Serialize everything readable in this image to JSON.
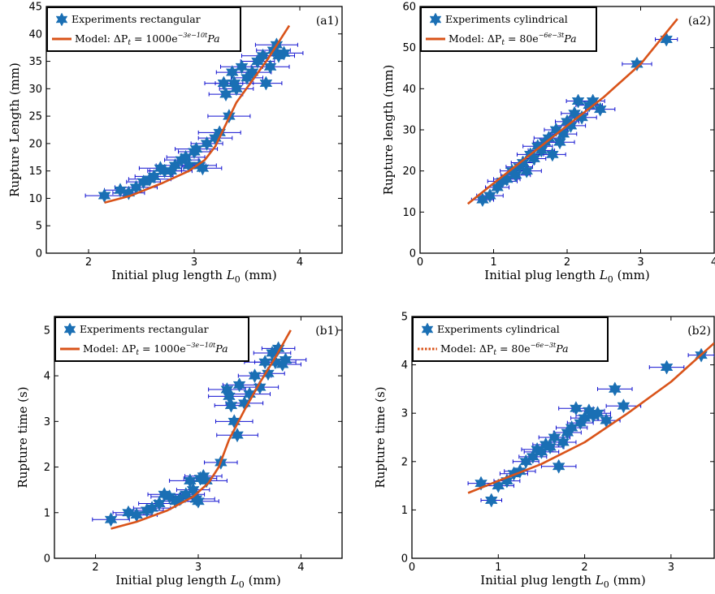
{
  "colors": {
    "marker": "#1a6fb4",
    "errorbar": "#1010d0",
    "model": "#d95319",
    "axis": "#000000"
  },
  "chart_data": [
    {
      "type": "scatter",
      "panel": "(a1)",
      "xlabel": "Initial plug length L0 (mm)",
      "xlabel_parts": {
        "main": "Initial plug length ",
        "var": "L",
        "sub": "0",
        "unit": " (mm)"
      },
      "ylabel": "Rupture Length (mm)",
      "xlim": [
        1.6,
        4.4
      ],
      "ylim": [
        0,
        45
      ],
      "xticks": [
        2,
        3,
        4
      ],
      "yticks": [
        0,
        5,
        10,
        15,
        20,
        25,
        30,
        35,
        40,
        45
      ],
      "legend": {
        "experiments": "Experiments rectangular",
        "model_prefix": "Model: ΔP",
        "model_sub": "t",
        "model_eq": " = 1000e",
        "model_exp": "−3e−10t",
        "model_suffix": "Pa",
        "model_style": "solid"
      },
      "series": [
        {
          "name": "Experiments rectangular",
          "kind": "points",
          "x": [
            2.15,
            2.3,
            2.38,
            2.45,
            2.52,
            2.58,
            2.62,
            2.68,
            2.72,
            2.78,
            2.82,
            2.88,
            2.92,
            2.95,
            3.0,
            3.02,
            3.05,
            3.08,
            3.12,
            3.2,
            3.24,
            3.28,
            3.3,
            3.33,
            3.36,
            3.38,
            3.4,
            3.45,
            3.5,
            3.55,
            3.6,
            3.65,
            3.68,
            3.72,
            3.75,
            3.78,
            3.8,
            3.85
          ],
          "y": [
            10.5,
            11.5,
            11,
            12,
            13,
            13.5,
            14,
            15.5,
            15,
            15,
            16,
            17,
            17.5,
            16,
            18.5,
            19,
            16,
            15.5,
            20,
            21,
            22,
            31,
            29,
            25,
            33,
            31,
            30,
            34,
            32,
            33,
            35,
            36,
            31,
            34,
            37,
            38,
            36,
            36.5
          ],
          "xerr": [
            0.18,
            0.15,
            0.15,
            0.2,
            0.16,
            0.2,
            0.18,
            0.2,
            0.16,
            0.2,
            0.18,
            0.16,
            0.18,
            0.16,
            0.15,
            0.2,
            0.16,
            0.18,
            0.15,
            0.16,
            0.2,
            0.18,
            0.16,
            0.2,
            0.15,
            0.18,
            0.16,
            0.2,
            0.15,
            0.18,
            0.16,
            0.2,
            0.15,
            0.18,
            0.16,
            0.2,
            0.15,
            0.18
          ]
        },
        {
          "name": "Model",
          "kind": "line",
          "x": [
            2.15,
            2.4,
            2.7,
            2.95,
            3.1,
            3.2,
            3.3,
            3.4,
            3.55,
            3.7,
            3.9
          ],
          "y": [
            9.2,
            10.5,
            12.8,
            15.0,
            17.0,
            19.5,
            23.5,
            27.5,
            31.5,
            35.5,
            41.5
          ]
        }
      ]
    },
    {
      "type": "scatter",
      "panel": "(a2)",
      "xlabel": "Initial plug length L0 (mm)",
      "xlabel_parts": {
        "main": "Initial plug length ",
        "var": "L",
        "sub": "0",
        "unit": " (mm)"
      },
      "ylabel": "Rupture length (mm)",
      "xlim": [
        0,
        4
      ],
      "ylim": [
        0,
        60
      ],
      "xticks": [
        0,
        1,
        2,
        3,
        4
      ],
      "yticks": [
        0,
        10,
        20,
        30,
        40,
        50,
        60
      ],
      "legend": {
        "experiments": "Experiments cylindrical",
        "model_prefix": "Model: ΔP",
        "model_sub": "t",
        "model_eq": " = 80e",
        "model_exp": "−6e−3t",
        "model_suffix": "Pa",
        "model_style": "solid"
      },
      "series": [
        {
          "name": "Experiments cylindrical",
          "kind": "points",
          "x": [
            0.85,
            0.95,
            1.05,
            1.12,
            1.18,
            1.25,
            1.3,
            1.35,
            1.4,
            1.45,
            1.5,
            1.55,
            1.6,
            1.65,
            1.7,
            1.75,
            1.8,
            1.85,
            1.9,
            1.95,
            2.0,
            2.05,
            2.1,
            2.15,
            2.2,
            2.3,
            2.35,
            2.45,
            2.95,
            3.35
          ],
          "y": [
            13,
            14,
            16,
            17.5,
            18,
            20,
            19,
            21,
            22,
            20,
            24,
            23,
            26,
            25,
            27,
            28,
            24,
            30,
            27,
            29,
            32,
            31,
            34,
            37,
            33,
            36,
            37,
            35,
            46,
            52
          ],
          "xerr": [
            0.15,
            0.18,
            0.16,
            0.2,
            0.18,
            0.16,
            0.2,
            0.18,
            0.16,
            0.2,
            0.18,
            0.16,
            0.2,
            0.18,
            0.16,
            0.2,
            0.18,
            0.16,
            0.2,
            0.18,
            0.16,
            0.2,
            0.18,
            0.16,
            0.2,
            0.18,
            0.16,
            0.2,
            0.2,
            0.15
          ]
        },
        {
          "name": "Model",
          "kind": "line",
          "x": [
            0.65,
            1.0,
            1.5,
            2.0,
            2.5,
            3.0,
            3.5
          ],
          "y": [
            12,
            17,
            24,
            31,
            38,
            46,
            57
          ]
        }
      ]
    },
    {
      "type": "scatter",
      "panel": "(b1)",
      "xlabel": "Initial plug length L0 (mm)",
      "xlabel_parts": {
        "main": "Initial plug length ",
        "var": "L",
        "sub": "0",
        "unit": " (mm)"
      },
      "ylabel": "Rupture time (s)",
      "xlim": [
        1.6,
        4.4
      ],
      "ylim": [
        0,
        5.3
      ],
      "xticks": [
        2,
        3,
        4
      ],
      "yticks": [
        0,
        1,
        2,
        3,
        4,
        5
      ],
      "legend": {
        "experiments": "Experiments rectangular",
        "model_prefix": "Model: ΔP",
        "model_sub": "t",
        "model_eq": " = 1000e",
        "model_exp": "−3e−10t",
        "model_suffix": "Pa",
        "model_style": "solid"
      },
      "series": [
        {
          "name": "Experiments rectangular",
          "kind": "points",
          "x": [
            2.15,
            2.32,
            2.4,
            2.5,
            2.55,
            2.62,
            2.67,
            2.72,
            2.78,
            2.82,
            2.88,
            2.92,
            2.95,
            2.98,
            3.0,
            3.02,
            3.05,
            3.08,
            3.22,
            3.28,
            3.3,
            3.32,
            3.35,
            3.38,
            3.4,
            3.45,
            3.5,
            3.55,
            3.6,
            3.65,
            3.68,
            3.72,
            3.75,
            3.78,
            3.82,
            3.85
          ],
          "y": [
            0.85,
            1.0,
            0.95,
            1.05,
            1.1,
            1.2,
            1.4,
            1.35,
            1.25,
            1.3,
            1.4,
            1.7,
            1.5,
            1.3,
            1.25,
            1.75,
            1.8,
            1.7,
            2.1,
            3.7,
            3.55,
            3.35,
            3.0,
            2.7,
            3.8,
            3.4,
            3.6,
            4.0,
            3.75,
            4.3,
            4.05,
            4.5,
            4.3,
            4.6,
            4.25,
            4.35
          ],
          "xerr": [
            0.18,
            0.15,
            0.2,
            0.16,
            0.18,
            0.2,
            0.16,
            0.18,
            0.2,
            0.16,
            0.18,
            0.2,
            0.16,
            0.18,
            0.2,
            0.16,
            0.18,
            0.2,
            0.16,
            0.18,
            0.2,
            0.16,
            0.18,
            0.2,
            0.16,
            0.18,
            0.2,
            0.16,
            0.18,
            0.2,
            0.16,
            0.18,
            0.2,
            0.16,
            0.18,
            0.2
          ]
        },
        {
          "name": "Model",
          "kind": "line",
          "x": [
            2.15,
            2.4,
            2.7,
            2.95,
            3.1,
            3.2,
            3.3,
            3.45,
            3.6,
            3.75,
            3.9
          ],
          "y": [
            0.65,
            0.8,
            1.05,
            1.35,
            1.65,
            2.0,
            2.6,
            3.25,
            3.85,
            4.4,
            5.0
          ]
        }
      ]
    },
    {
      "type": "scatter",
      "panel": "(b2)",
      "xlabel": "Initial plug length L0 (mm)",
      "xlabel_parts": {
        "main": "Initial plug length ",
        "var": "L",
        "sub": "0",
        "unit": " (mm)"
      },
      "ylabel": "Rupture time (s)",
      "xlim": [
        0,
        3.5
      ],
      "ylim": [
        0,
        5
      ],
      "xticks": [
        0,
        1,
        2,
        3
      ],
      "yticks": [
        0,
        1,
        2,
        3,
        4,
        5
      ],
      "legend": {
        "experiments": "Experiments cylindrical",
        "model_prefix": "Model: ΔP",
        "model_sub": "t",
        "model_eq": " = 80e",
        "model_exp": "−6e−3t",
        "model_suffix": "Pa",
        "model_style": "dotted"
      },
      "series": [
        {
          "name": "Experiments cylindrical",
          "kind": "points",
          "x": [
            0.8,
            0.92,
            1.0,
            1.1,
            1.18,
            1.25,
            1.32,
            1.4,
            1.45,
            1.5,
            1.55,
            1.6,
            1.65,
            1.7,
            1.75,
            1.8,
            1.85,
            1.9,
            1.95,
            2.0,
            2.05,
            2.1,
            2.15,
            2.25,
            2.35,
            2.45,
            2.95,
            3.35
          ],
          "y": [
            1.55,
            1.2,
            1.5,
            1.6,
            1.75,
            1.8,
            2.0,
            2.1,
            2.25,
            2.2,
            2.35,
            2.3,
            2.5,
            1.9,
            2.4,
            2.6,
            2.7,
            3.1,
            2.8,
            2.9,
            3.05,
            2.95,
            3.0,
            2.85,
            3.5,
            3.15,
            3.95,
            4.2
          ],
          "xerr": [
            0.15,
            0.12,
            0.18,
            0.15,
            0.16,
            0.18,
            0.15,
            0.16,
            0.18,
            0.2,
            0.15,
            0.16,
            0.18,
            0.2,
            0.15,
            0.16,
            0.18,
            0.2,
            0.15,
            0.16,
            0.18,
            0.2,
            0.15,
            0.16,
            0.2,
            0.2,
            0.2,
            0.15
          ]
        },
        {
          "name": "Model",
          "kind": "line",
          "x": [
            0.65,
            1.0,
            1.5,
            2.0,
            2.5,
            3.0,
            3.5
          ],
          "y": [
            1.35,
            1.6,
            1.95,
            2.4,
            3.0,
            3.65,
            4.45
          ]
        }
      ]
    }
  ]
}
